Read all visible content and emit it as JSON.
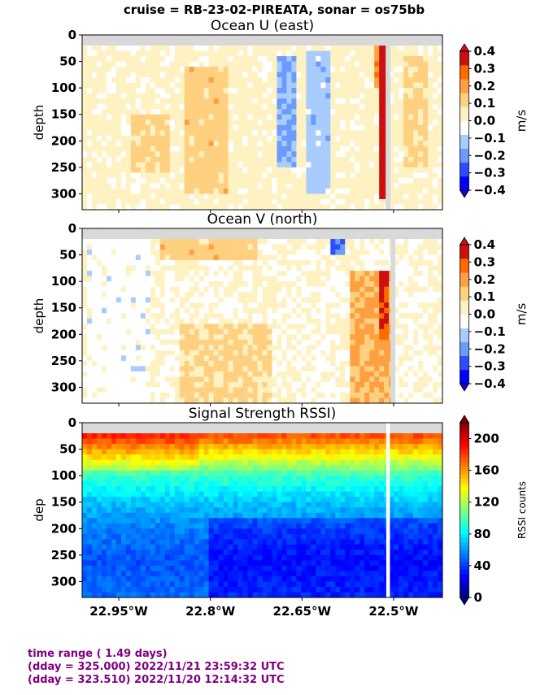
{
  "suptitle": "cruise = RB-23-02-PIREATA,  sonar = os75bb",
  "footer": {
    "line1": "time range ( 1.49 days)",
    "line2": "(dday = 325.000) 2022/11/21 23:59:32 UTC",
    "line3": "(dday = 323.510) 2022/11/20 12:14:32 UTC"
  },
  "colors": {
    "nodata": "#d9d9d9",
    "velocity_levels": [
      "#0000ff",
      "#2f4dff",
      "#6b9bff",
      "#a9ccff",
      "#ffffff",
      "#fff2c2",
      "#ffd080",
      "#ffa040",
      "#ff6a00",
      "#cc1010"
    ],
    "rssi_cmap": "jet",
    "footer": "#800080"
  },
  "chart_data": [
    {
      "type": "heatmap",
      "title": "Ocean U (east)",
      "ylabel": "depth",
      "xlabel": "",
      "x_ticks": [
        -22.95,
        -22.8,
        -22.65,
        -22.5
      ],
      "x_tick_labels": [
        "22.95°W",
        "22.8°W",
        "22.65°W",
        "22.5°W"
      ],
      "xlim": [
        -23.01,
        -22.42
      ],
      "y_ticks": [
        0,
        50,
        100,
        150,
        200,
        250,
        300
      ],
      "ylim": [
        330,
        0
      ],
      "data_start_depth": 20,
      "data_end_depth": 330,
      "gap_columns_lon": [
        [
          -22.513,
          -22.505
        ]
      ],
      "colorbar": {
        "label": "m/s",
        "ticks": [
          0.4,
          0.3,
          0.2,
          0.1,
          0.0,
          -0.1,
          -0.2,
          -0.3,
          -0.4
        ],
        "tick_labels": [
          "0.4",
          "0.3",
          "0.2",
          "0.1",
          "0.0",
          "−0.1",
          "−0.2",
          "−0.3",
          "−0.4"
        ],
        "range": [
          -0.4,
          0.4
        ]
      },
      "features": [
        {
          "lon": [
            -23.0,
            -22.85
          ],
          "depth": [
            20,
            330
          ],
          "value": 0.02
        },
        {
          "lon": [
            -22.84,
            -22.77
          ],
          "depth": [
            60,
            300
          ],
          "value": 0.12
        },
        {
          "lon": [
            -22.93,
            -22.87
          ],
          "depth": [
            150,
            260
          ],
          "value": 0.11
        },
        {
          "lon": [
            -22.69,
            -22.66
          ],
          "depth": [
            40,
            250
          ],
          "value": -0.17
        },
        {
          "lon": [
            -22.64,
            -22.6
          ],
          "depth": [
            30,
            300
          ],
          "value": -0.12
        },
        {
          "lon": [
            -22.52,
            -22.51
          ],
          "depth": [
            20,
            310
          ],
          "value": 0.38
        },
        {
          "lon": [
            -22.535,
            -22.52
          ],
          "depth": [
            20,
            100
          ],
          "value": 0.22
        },
        {
          "lon": [
            -22.48,
            -22.44
          ],
          "depth": [
            40,
            250
          ],
          "value": 0.1
        }
      ]
    },
    {
      "type": "heatmap",
      "title": "Ocean V (north)",
      "ylabel": "depth",
      "xlabel": "",
      "x_ticks": [
        -22.95,
        -22.8,
        -22.65,
        -22.5
      ],
      "x_tick_labels": [
        "22.95°W",
        "22.8°W",
        "22.65°W",
        "22.5°W"
      ],
      "xlim": [
        -23.01,
        -22.42
      ],
      "y_ticks": [
        0,
        50,
        100,
        150,
        200,
        250,
        300
      ],
      "ylim": [
        330,
        0
      ],
      "data_start_depth": 20,
      "data_end_depth": 330,
      "gap_columns_lon": [
        [
          -22.505,
          -22.497
        ]
      ],
      "colorbar": {
        "label": "m/s",
        "ticks": [
          0.4,
          0.3,
          0.2,
          0.1,
          0.0,
          -0.1,
          -0.2,
          -0.3,
          -0.4
        ],
        "tick_labels": [
          "0.4",
          "0.3",
          "0.2",
          "0.1",
          "0.0",
          "−0.1",
          "−0.2",
          "−0.3",
          "−0.4"
        ],
        "range": [
          -0.4,
          0.4
        ]
      },
      "features": [
        {
          "lon": [
            -23.0,
            -22.9
          ],
          "depth": [
            20,
            330
          ],
          "value": -0.04
        },
        {
          "lon": [
            -22.88,
            -22.72
          ],
          "depth": [
            20,
            60
          ],
          "value": 0.12
        },
        {
          "lon": [
            -22.85,
            -22.7
          ],
          "depth": [
            180,
            330
          ],
          "value": 0.1
        },
        {
          "lon": [
            -22.57,
            -22.5
          ],
          "depth": [
            80,
            330
          ],
          "value": 0.17
        },
        {
          "lon": [
            -22.52,
            -22.51
          ],
          "depth": [
            80,
            210
          ],
          "value": 0.32
        },
        {
          "lon": [
            -22.6,
            -22.58
          ],
          "depth": [
            20,
            50
          ],
          "value": -0.25
        }
      ]
    },
    {
      "type": "heatmap",
      "title": "Signal Strength RSSI)",
      "ylabel": "dep",
      "xlabel": "",
      "x_ticks": [
        -22.95,
        -22.8,
        -22.65,
        -22.5
      ],
      "x_tick_labels": [
        "22.95°W",
        "22.8°W",
        "22.65°W",
        "22.5°W"
      ],
      "xlim": [
        -23.01,
        -22.42
      ],
      "y_ticks": [
        0,
        50,
        100,
        150,
        200,
        250,
        300
      ],
      "ylim": [
        330,
        0
      ],
      "data_start_depth": 20,
      "data_end_depth": 330,
      "gap_columns_lon": [
        [
          -22.512,
          -22.506
        ]
      ],
      "colorbar": {
        "label": "RSSI counts",
        "ticks": [
          200,
          160,
          120,
          80,
          40,
          0
        ],
        "tick_labels": [
          "200",
          "160",
          "120",
          "80",
          "40",
          "0"
        ],
        "range": [
          0,
          220
        ]
      },
      "features": [
        {
          "depth": 20,
          "value": 180
        },
        {
          "depth": 60,
          "value": 140
        },
        {
          "depth": 100,
          "value": 95
        },
        {
          "depth": 150,
          "value": 70
        },
        {
          "depth": 200,
          "value": 55
        },
        {
          "depth": 260,
          "value": 45
        },
        {
          "depth": 320,
          "value": 50
        }
      ]
    }
  ]
}
